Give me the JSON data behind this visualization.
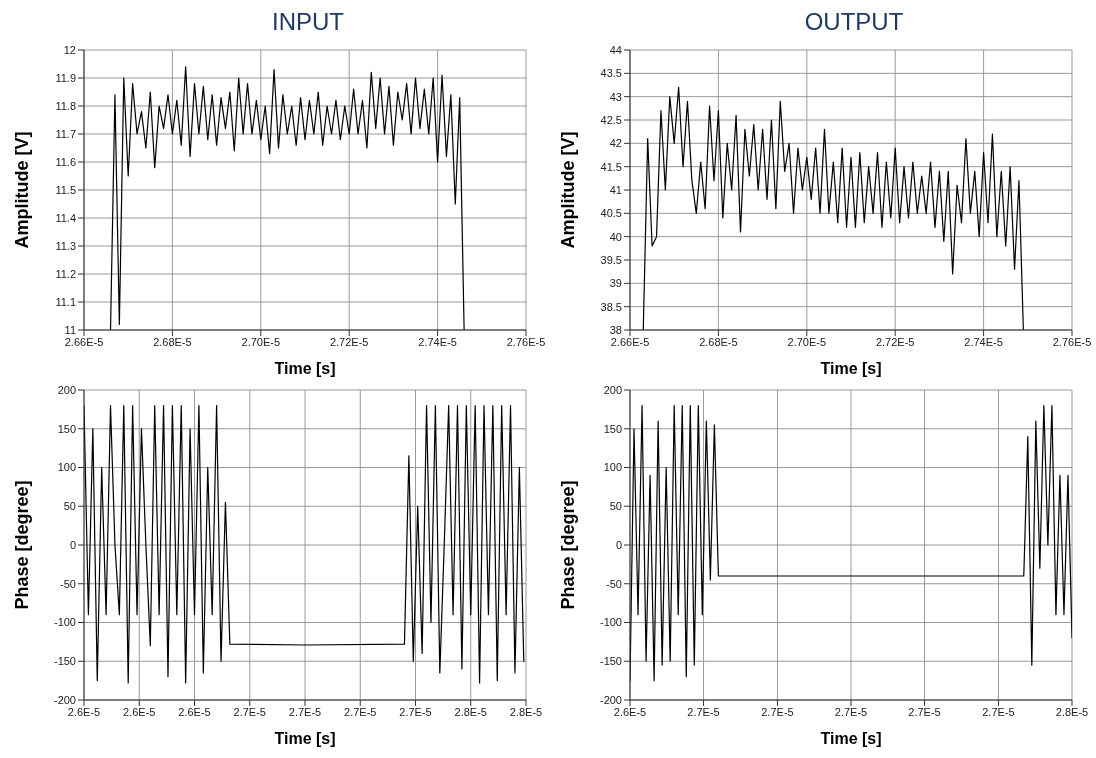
{
  "chart_data": [
    {
      "type": "line",
      "title": "INPUT",
      "xlabel": "Time [s]",
      "ylabel": "Amplitude [V]",
      "grid": true,
      "xlim": [
        2.66e-05,
        2.76e-05
      ],
      "ylim": [
        11,
        12
      ],
      "xticks": [
        {
          "value": 2.66e-05,
          "label": "2.66E-5"
        },
        {
          "value": 2.68e-05,
          "label": "2.68E-5"
        },
        {
          "value": 2.7e-05,
          "label": "2.70E-5"
        },
        {
          "value": 2.72e-05,
          "label": "2.72E-5"
        },
        {
          "value": 2.74e-05,
          "label": "2.74E-5"
        },
        {
          "value": 2.76e-05,
          "label": "2.76E-5"
        }
      ],
      "yticks": [
        11,
        11.1,
        11.2,
        11.3,
        11.4,
        11.5,
        11.6,
        11.7,
        11.8,
        11.9,
        12
      ],
      "series": [
        {
          "color": "#000000",
          "x": [
            2.666e-05,
            2.667e-05,
            2.668e-05,
            2.669e-05,
            2.67e-05,
            2.671e-05,
            2.672e-05,
            2.673e-05,
            2.674e-05,
            2.675e-05,
            2.676e-05,
            2.677e-05,
            2.678e-05,
            2.679e-05,
            2.68e-05,
            2.681e-05,
            2.682e-05,
            2.683e-05,
            2.684e-05,
            2.685e-05,
            2.686e-05,
            2.687e-05,
            2.688e-05,
            2.689e-05,
            2.69e-05,
            2.691e-05,
            2.692e-05,
            2.693e-05,
            2.694e-05,
            2.695e-05,
            2.696e-05,
            2.697e-05,
            2.698e-05,
            2.699e-05,
            2.7e-05,
            2.701e-05,
            2.702e-05,
            2.703e-05,
            2.704e-05,
            2.705e-05,
            2.706e-05,
            2.707e-05,
            2.708e-05,
            2.709e-05,
            2.71e-05,
            2.711e-05,
            2.712e-05,
            2.713e-05,
            2.714e-05,
            2.715e-05,
            2.716e-05,
            2.717e-05,
            2.718e-05,
            2.719e-05,
            2.72e-05,
            2.721e-05,
            2.722e-05,
            2.723e-05,
            2.724e-05,
            2.725e-05,
            2.726e-05,
            2.727e-05,
            2.728e-05,
            2.729e-05,
            2.73e-05,
            2.731e-05,
            2.732e-05,
            2.733e-05,
            2.734e-05,
            2.735e-05,
            2.736e-05,
            2.737e-05,
            2.738e-05,
            2.739e-05,
            2.74e-05,
            2.741e-05,
            2.742e-05,
            2.743e-05,
            2.744e-05,
            2.745e-05,
            2.746e-05
          ],
          "values": [
            11.0,
            11.84,
            11.02,
            11.9,
            11.55,
            11.88,
            11.7,
            11.78,
            11.65,
            11.85,
            11.58,
            11.8,
            11.72,
            11.84,
            11.7,
            11.82,
            11.66,
            11.94,
            11.62,
            11.88,
            11.7,
            11.87,
            11.68,
            11.84,
            11.66,
            11.83,
            11.72,
            11.85,
            11.64,
            11.9,
            11.7,
            11.88,
            11.7,
            11.82,
            11.68,
            11.8,
            11.63,
            11.93,
            11.65,
            11.84,
            11.7,
            11.8,
            11.66,
            11.83,
            11.68,
            11.82,
            11.7,
            11.85,
            11.66,
            11.8,
            11.7,
            11.82,
            11.68,
            11.8,
            11.7,
            11.86,
            11.7,
            11.82,
            11.65,
            11.92,
            11.72,
            11.9,
            11.7,
            11.87,
            11.66,
            11.85,
            11.75,
            11.88,
            11.7,
            11.9,
            11.72,
            11.86,
            11.7,
            11.9,
            11.6,
            11.91,
            11.62,
            11.84,
            11.45,
            11.83,
            11.0
          ]
        }
      ]
    },
    {
      "type": "line",
      "title": "OUTPUT",
      "xlabel": "Time [s]",
      "ylabel": "Amplitude [V]",
      "grid": true,
      "xlim": [
        2.66e-05,
        2.76e-05
      ],
      "ylim": [
        38,
        44
      ],
      "xticks": [
        {
          "value": 2.66e-05,
          "label": "2.66E-5"
        },
        {
          "value": 2.68e-05,
          "label": "2.68E-5"
        },
        {
          "value": 2.7e-05,
          "label": "2.70E-5"
        },
        {
          "value": 2.72e-05,
          "label": "2.72E-5"
        },
        {
          "value": 2.74e-05,
          "label": "2.74E-5"
        },
        {
          "value": 2.76e-05,
          "label": "2.76E-5"
        }
      ],
      "yticks": [
        38,
        38.5,
        39,
        39.5,
        40,
        40.5,
        41,
        41.5,
        42,
        42.5,
        43,
        43.5,
        44
      ],
      "series": [
        {
          "color": "#000000",
          "x": [
            2.663e-05,
            2.664e-05,
            2.665e-05,
            2.666e-05,
            2.667e-05,
            2.668e-05,
            2.669e-05,
            2.67e-05,
            2.671e-05,
            2.672e-05,
            2.673e-05,
            2.674e-05,
            2.675e-05,
            2.676e-05,
            2.677e-05,
            2.678e-05,
            2.679e-05,
            2.68e-05,
            2.681e-05,
            2.682e-05,
            2.683e-05,
            2.684e-05,
            2.685e-05,
            2.686e-05,
            2.687e-05,
            2.688e-05,
            2.689e-05,
            2.69e-05,
            2.691e-05,
            2.692e-05,
            2.693e-05,
            2.694e-05,
            2.695e-05,
            2.696e-05,
            2.697e-05,
            2.698e-05,
            2.699e-05,
            2.7e-05,
            2.701e-05,
            2.702e-05,
            2.703e-05,
            2.704e-05,
            2.705e-05,
            2.706e-05,
            2.707e-05,
            2.708e-05,
            2.709e-05,
            2.71e-05,
            2.711e-05,
            2.712e-05,
            2.713e-05,
            2.714e-05,
            2.715e-05,
            2.716e-05,
            2.717e-05,
            2.718e-05,
            2.719e-05,
            2.72e-05,
            2.721e-05,
            2.722e-05,
            2.723e-05,
            2.724e-05,
            2.725e-05,
            2.726e-05,
            2.727e-05,
            2.728e-05,
            2.729e-05,
            2.73e-05,
            2.731e-05,
            2.732e-05,
            2.733e-05,
            2.734e-05,
            2.735e-05,
            2.736e-05,
            2.737e-05,
            2.738e-05,
            2.739e-05,
            2.74e-05,
            2.741e-05,
            2.742e-05,
            2.743e-05,
            2.744e-05,
            2.745e-05,
            2.746e-05,
            2.747e-05,
            2.748e-05,
            2.749e-05
          ],
          "values": [
            38.0,
            42.1,
            39.8,
            40.0,
            42.7,
            41.0,
            43.0,
            42.0,
            43.2,
            41.5,
            42.9,
            41.2,
            40.5,
            41.6,
            40.6,
            42.8,
            41.2,
            42.7,
            40.4,
            42.0,
            41.0,
            42.6,
            40.1,
            42.3,
            41.3,
            42.4,
            41.0,
            42.3,
            40.8,
            42.5,
            40.6,
            42.9,
            41.4,
            42.0,
            40.5,
            41.9,
            41.0,
            41.7,
            40.8,
            41.9,
            40.5,
            42.3,
            40.5,
            41.6,
            40.3,
            41.9,
            40.2,
            41.7,
            40.2,
            41.8,
            40.3,
            41.5,
            40.5,
            41.8,
            40.2,
            41.6,
            40.4,
            41.9,
            40.3,
            41.5,
            40.4,
            41.6,
            40.5,
            41.3,
            40.5,
            41.6,
            40.2,
            41.4,
            39.9,
            41.4,
            39.2,
            41.1,
            40.3,
            42.1,
            40.5,
            41.4,
            40.0,
            41.8,
            40.3,
            42.2,
            40.0,
            41.4,
            39.8,
            41.5,
            39.3,
            41.2,
            38.0
          ]
        }
      ]
    },
    {
      "type": "line",
      "xlabel": "Time [s]",
      "ylabel": "Phase [degree]",
      "grid": true,
      "xlim": [
        2.6e-05,
        2.8e-05
      ],
      "ylim": [
        -200,
        200
      ],
      "xticks": [
        {
          "value": 2.6e-05,
          "label": "2.6E-5"
        },
        {
          "value": 2.625e-05,
          "label": "2.6E-5"
        },
        {
          "value": 2.65e-05,
          "label": "2.6E-5"
        },
        {
          "value": 2.675e-05,
          "label": "2.7E-5"
        },
        {
          "value": 2.7e-05,
          "label": "2.7E-5"
        },
        {
          "value": 2.725e-05,
          "label": "2.7E-5"
        },
        {
          "value": 2.75e-05,
          "label": "2.7E-5"
        },
        {
          "value": 2.775e-05,
          "label": "2.8E-5"
        },
        {
          "value": 2.8e-05,
          "label": "2.8E-5"
        }
      ],
      "yticks": [
        -200,
        -150,
        -100,
        -50,
        0,
        50,
        100,
        150,
        200
      ],
      "series": [
        {
          "color": "#000000",
          "x": [
            2.6e-05,
            2.602e-05,
            2.604e-05,
            2.606e-05,
            2.608e-05,
            2.61e-05,
            2.612e-05,
            2.614e-05,
            2.616e-05,
            2.618e-05,
            2.62e-05,
            2.622e-05,
            2.624e-05,
            2.626e-05,
            2.628e-05,
            2.63e-05,
            2.632e-05,
            2.634e-05,
            2.636e-05,
            2.638e-05,
            2.64e-05,
            2.642e-05,
            2.644e-05,
            2.646e-05,
            2.648e-05,
            2.65e-05,
            2.652e-05,
            2.654e-05,
            2.656e-05,
            2.658e-05,
            2.66e-05,
            2.662e-05,
            2.664e-05,
            2.666e-05,
            2.7e-05,
            2.745e-05,
            2.747e-05,
            2.749e-05,
            2.751e-05,
            2.753e-05,
            2.755e-05,
            2.757e-05,
            2.759e-05,
            2.761e-05,
            2.763e-05,
            2.765e-05,
            2.767e-05,
            2.769e-05,
            2.771e-05,
            2.773e-05,
            2.775e-05,
            2.777e-05,
            2.779e-05,
            2.781e-05,
            2.783e-05,
            2.785e-05,
            2.787e-05,
            2.789e-05,
            2.791e-05,
            2.793e-05,
            2.795e-05,
            2.797e-05,
            2.799e-05
          ],
          "values": [
            180,
            -90,
            150,
            -175,
            100,
            -90,
            180,
            0,
            -90,
            180,
            -178,
            180,
            -90,
            150,
            0,
            -130,
            180,
            -90,
            180,
            -170,
            180,
            -90,
            180,
            -178,
            150,
            -90,
            180,
            -165,
            100,
            -90,
            180,
            -150,
            55,
            -128,
            -129,
            -128,
            115,
            -150,
            50,
            -140,
            180,
            -100,
            180,
            -165,
            0,
            180,
            -90,
            180,
            -160,
            180,
            -90,
            180,
            -178,
            180,
            -90,
            180,
            -175,
            180,
            -90,
            180,
            -165,
            100,
            -150
          ]
        }
      ]
    },
    {
      "type": "line",
      "xlabel": "Time [s]",
      "ylabel": "Phase [degree]",
      "grid": true,
      "xlim": [
        2.64e-05,
        2.75e-05
      ],
      "ylim": [
        -200,
        200
      ],
      "xticks": [
        {
          "value": 2.64e-05,
          "label": "2.6E-5"
        },
        {
          "value": 2.6583e-05,
          "label": "2.7E-5"
        },
        {
          "value": 2.6767e-05,
          "label": "2.7E-5"
        },
        {
          "value": 2.695e-05,
          "label": "2.7E-5"
        },
        {
          "value": 2.7133e-05,
          "label": "2.7E-5"
        },
        {
          "value": 2.7317e-05,
          "label": "2.7E-5"
        },
        {
          "value": 2.75e-05,
          "label": "2.8E-5"
        }
      ],
      "yticks": [
        -200,
        -150,
        -100,
        -50,
        0,
        50,
        100,
        150,
        200
      ],
      "series": [
        {
          "color": "#000000",
          "x": [
            2.64e-05,
            2.641e-05,
            2.642e-05,
            2.643e-05,
            2.644e-05,
            2.645e-05,
            2.646e-05,
            2.647e-05,
            2.648e-05,
            2.649e-05,
            2.65e-05,
            2.651e-05,
            2.652e-05,
            2.653e-05,
            2.654e-05,
            2.655e-05,
            2.656e-05,
            2.657e-05,
            2.658e-05,
            2.659e-05,
            2.66e-05,
            2.661e-05,
            2.662e-05,
            2.7e-05,
            2.738e-05,
            2.739e-05,
            2.74e-05,
            2.741e-05,
            2.742e-05,
            2.743e-05,
            2.744e-05,
            2.745e-05,
            2.746e-05,
            2.747e-05,
            2.748e-05,
            2.749e-05,
            2.75e-05
          ],
          "values": [
            -175,
            150,
            -90,
            180,
            -150,
            90,
            -175,
            160,
            -155,
            100,
            -150,
            180,
            -90,
            180,
            -170,
            180,
            -155,
            180,
            -90,
            160,
            -45,
            155,
            -40,
            -40,
            -40,
            140,
            -155,
            160,
            -30,
            180,
            0,
            180,
            -90,
            90,
            -90,
            90,
            -120
          ]
        }
      ]
    }
  ]
}
